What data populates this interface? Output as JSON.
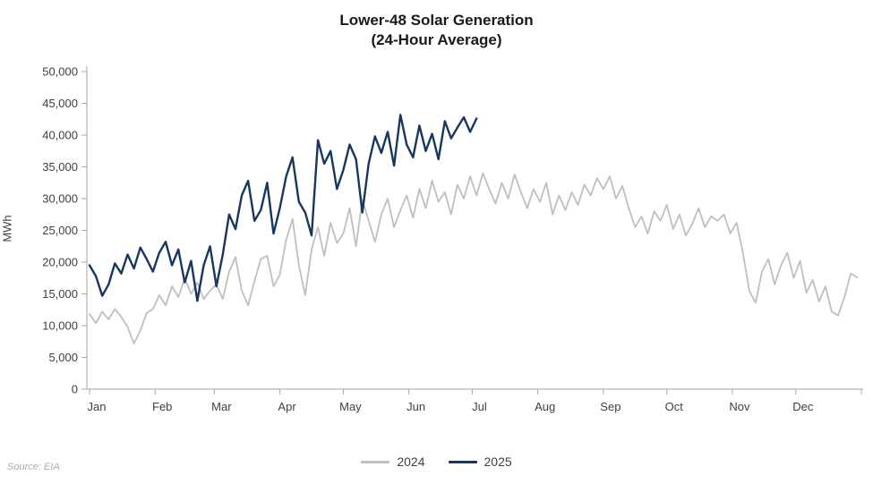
{
  "title": {
    "line1": "Lower-48 Solar Generation",
    "line2": "(24-Hour Average)"
  },
  "source": "Source: EIA",
  "legend": {
    "items": [
      {
        "label": "2024",
        "color": "#bfbfbf"
      },
      {
        "label": "2025",
        "color": "#17375e"
      }
    ]
  },
  "chart_data": {
    "type": "line",
    "title": "Lower-48 Solar Generation (24-Hour Average)",
    "xlabel": "",
    "ylabel": "MWh",
    "ylim": [
      0,
      50000
    ],
    "grid": false,
    "legend_position": "bottom",
    "x_unit": "day-of-year",
    "ytick_values": [
      0,
      5000,
      10000,
      15000,
      20000,
      25000,
      30000,
      35000,
      40000,
      45000,
      50000
    ],
    "ytick_labels": [
      "0",
      "5,000",
      "10,000",
      "15,000",
      "20,000",
      "25,000",
      "30,000",
      "35,000",
      "40,000",
      "45,000",
      "50,000"
    ],
    "xtick_labels": [
      "Jan",
      "Feb",
      "Mar",
      "Apr",
      "May",
      "Jun",
      "Jul",
      "Aug",
      "Sep",
      "Oct",
      "Nov",
      "Dec"
    ],
    "month_start_days": [
      1,
      32,
      60,
      91,
      121,
      152,
      182,
      213,
      244,
      274,
      305,
      335
    ],
    "series": [
      {
        "name": "2024",
        "color": "#bfbfbf",
        "width": 1.8,
        "x_start_day": 1,
        "x_step_days": 3,
        "values": [
          11800,
          10400,
          12200,
          11000,
          12600,
          11400,
          9800,
          7200,
          9200,
          12000,
          12600,
          14800,
          13200,
          16200,
          14500,
          17500,
          15000,
          16800,
          14200,
          15500,
          16500,
          14200,
          18500,
          20800,
          15500,
          13200,
          17000,
          20500,
          21000,
          16200,
          18000,
          23500,
          26800,
          19500,
          14800,
          22000,
          25500,
          21000,
          26200,
          23000,
          24500,
          28500,
          22500,
          29800,
          26500,
          23200,
          27500,
          30000,
          25500,
          28200,
          30500,
          27000,
          31500,
          28500,
          32800,
          29500,
          31000,
          27500,
          32200,
          30000,
          33500,
          30500,
          34000,
          31500,
          29200,
          32500,
          30000,
          33800,
          31000,
          28500,
          31500,
          29500,
          32500,
          27500,
          30500,
          28200,
          31000,
          29000,
          32200,
          30500,
          33200,
          31500,
          33500,
          30000,
          32000,
          28500,
          25500,
          27200,
          24500,
          28000,
          26500,
          29000,
          25200,
          27500,
          24200,
          26000,
          28500,
          25500,
          27200,
          26500,
          27500,
          24500,
          26200,
          21500,
          15500,
          13600,
          18500,
          20500,
          16500,
          19500,
          21500,
          17500,
          20200,
          15200,
          17200,
          13800,
          16200,
          12200,
          11600,
          14500,
          18200,
          17600
        ]
      },
      {
        "name": "2025",
        "color": "#17375e",
        "width": 2.4,
        "x_start_day": 1,
        "x_step_days": 3,
        "values": [
          19500,
          17800,
          14700,
          16500,
          19800,
          18200,
          21200,
          19000,
          22300,
          20500,
          18500,
          21500,
          23200,
          19500,
          22000,
          16800,
          20200,
          13900,
          19500,
          22500,
          16200,
          21200,
          27500,
          25200,
          30500,
          32800,
          26500,
          28200,
          32500,
          24500,
          28500,
          33500,
          36500,
          29500,
          27800,
          24200,
          39200,
          35500,
          37500,
          31500,
          34500,
          38500,
          36200,
          27800,
          35500,
          39800,
          37200,
          40500,
          35200,
          43200,
          38500,
          36500,
          41500,
          37500,
          40200,
          36200,
          42200,
          39500,
          41200,
          42800,
          40500,
          42600
        ]
      }
    ]
  }
}
